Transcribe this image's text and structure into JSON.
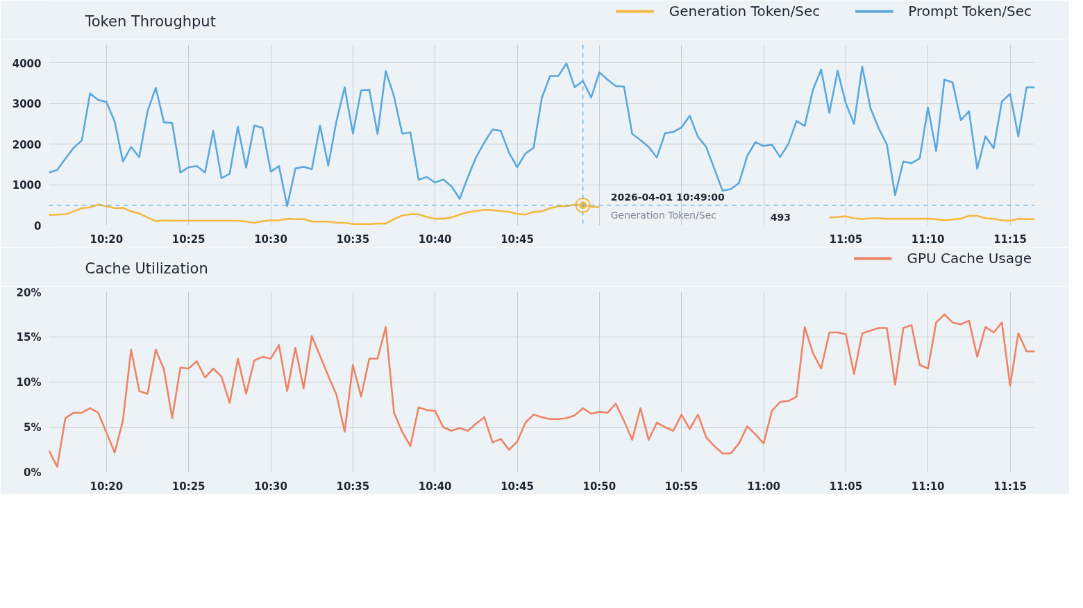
{
  "chart_data": [
    {
      "type": "line",
      "title": "Token Throughput",
      "legend": "top right",
      "grid": true,
      "x": [
        "2026-04-01T10:16:30",
        "2026-04-01T10:17:00",
        "2026-04-01T10:17:30",
        "2026-04-01T10:18:00",
        "2026-04-01T10:18:30",
        "2026-04-01T10:19:00",
        "2026-04-01T10:19:30",
        "2026-04-01T10:20:00",
        "2026-04-01T10:20:30",
        "2026-04-01T10:21:00",
        "2026-04-01T10:21:30",
        "2026-04-01T10:22:00",
        "2026-04-01T10:22:30",
        "2026-04-01T10:23:00",
        "2026-04-01T10:23:30",
        "2026-04-01T10:24:00",
        "2026-04-01T10:24:30",
        "2026-04-01T10:25:00",
        "2026-04-01T10:25:30",
        "2026-04-01T10:26:00",
        "2026-04-01T10:26:30",
        "2026-04-01T10:27:00",
        "2026-04-01T10:27:30",
        "2026-04-01T10:28:00",
        "2026-04-01T10:28:30",
        "2026-04-01T10:29:00",
        "2026-04-01T10:29:30",
        "2026-04-01T10:30:00",
        "2026-04-01T10:30:30",
        "2026-04-01T10:31:00",
        "2026-04-01T10:31:30",
        "2026-04-01T10:32:00",
        "2026-04-01T10:32:30",
        "2026-04-01T10:33:00",
        "2026-04-01T10:33:30",
        "2026-04-01T10:34:00",
        "2026-04-01T10:34:30",
        "2026-04-01T10:35:00",
        "2026-04-01T10:35:30",
        "2026-04-01T10:36:00",
        "2026-04-01T10:36:30",
        "2026-04-01T10:37:00",
        "2026-04-01T10:37:30",
        "2026-04-01T10:38:00",
        "2026-04-01T10:38:30",
        "2026-04-01T10:39:00",
        "2026-04-01T10:39:30",
        "2026-04-01T10:40:00",
        "2026-04-01T10:40:30",
        "2026-04-01T10:41:00",
        "2026-04-01T10:41:30",
        "2026-04-01T10:42:00",
        "2026-04-01T10:42:30",
        "2026-04-01T10:43:00",
        "2026-04-01T10:43:30",
        "2026-04-01T10:44:00",
        "2026-04-01T10:44:30",
        "2026-04-01T10:45:00",
        "2026-04-01T10:45:30",
        "2026-04-01T10:46:00",
        "2026-04-01T10:46:30",
        "2026-04-01T10:47:00",
        "2026-04-01T10:47:30",
        "2026-04-01T10:48:00",
        "2026-04-01T10:48:30",
        "2026-04-01T10:49:00",
        "2026-04-01T10:49:30",
        "2026-04-01T10:50:00",
        "2026-04-01T10:50:30",
        "2026-04-01T10:51:00",
        "2026-04-01T10:51:30",
        "2026-04-01T10:52:00",
        "2026-04-01T10:52:30",
        "2026-04-01T10:53:00",
        "2026-04-01T10:53:30",
        "2026-04-01T10:54:00",
        "2026-04-01T10:54:30",
        "2026-04-01T10:55:00",
        "2026-04-01T10:55:30",
        "2026-04-01T10:56:00",
        "2026-04-01T10:56:30",
        "2026-04-01T10:57:00",
        "2026-04-01T10:57:30",
        "2026-04-01T10:58:00",
        "2026-04-01T10:58:30",
        "2026-04-01T10:59:00",
        "2026-04-01T10:59:30",
        "2026-04-01T11:00:00",
        "2026-04-01T11:00:30",
        "2026-04-01T11:01:00",
        "2026-04-01T11:01:30",
        "2026-04-01T11:02:00",
        "2026-04-01T11:02:30",
        "2026-04-01T11:03:00",
        "2026-04-01T11:03:30",
        "2026-04-01T11:04:00",
        "2026-04-01T11:04:30",
        "2026-04-01T11:05:00",
        "2026-04-01T11:05:30",
        "2026-04-01T11:06:00",
        "2026-04-01T11:06:30",
        "2026-04-01T11:07:00",
        "2026-04-01T11:07:30",
        "2026-04-01T11:08:00",
        "2026-04-01T11:08:30",
        "2026-04-01T11:09:00",
        "2026-04-01T11:09:30",
        "2026-04-01T11:10:00",
        "2026-04-01T11:10:30",
        "2026-04-01T11:11:00",
        "2026-04-01T11:11:30",
        "2026-04-01T11:12:00",
        "2026-04-01T11:12:30",
        "2026-04-01T11:13:00",
        "2026-04-01T11:13:30",
        "2026-04-01T11:14:00",
        "2026-04-01T11:14:30",
        "2026-04-01T11:15:00",
        "2026-04-01T11:15:30",
        "2026-04-01T11:16:00",
        "2026-04-01T11:16:30"
      ],
      "xlim": [
        "2026-04-01T10:16:30",
        "2026-04-01T11:16:30"
      ],
      "xticks": [
        {
          "value": "2026-04-01T10:20",
          "label": "10:20"
        },
        {
          "value": "2026-04-01T10:25",
          "label": "10:25"
        },
        {
          "value": "2026-04-01T10:30",
          "label": "10:30"
        },
        {
          "value": "2026-04-01T10:35",
          "label": "10:35"
        },
        {
          "value": "2026-04-01T10:40",
          "label": "10:40"
        },
        {
          "value": "2026-04-01T10:45",
          "label": "10:45"
        },
        {
          "value": "2026-04-01T10:50",
          "label": null
        },
        {
          "value": "2026-04-01T10:55",
          "label": null
        },
        {
          "value": "2026-04-01T11:00",
          "label": null
        },
        {
          "value": "2026-04-01T11:05",
          "label": "11:05"
        },
        {
          "value": "2026-04-01T11:10",
          "label": "11:10"
        },
        {
          "value": "2026-04-01T11:15",
          "label": "11:15"
        }
      ],
      "ylim": [
        0,
        4450
      ],
      "yticks": [
        0,
        1000,
        2000,
        3000,
        4000
      ],
      "series": [
        {
          "name": "Generation Token/Sec",
          "color": "#f5b942",
          "values": [
            250,
            260,
            270,
            340,
            420,
            440,
            510,
            470,
            420,
            430,
            340,
            290,
            190,
            100,
            120,
            110,
            110,
            110,
            110,
            110,
            110,
            110,
            110,
            110,
            90,
            60,
            100,
            120,
            120,
            160,
            150,
            150,
            90,
            90,
            90,
            60,
            60,
            30,
            30,
            30,
            40,
            40,
            150,
            240,
            270,
            270,
            200,
            160,
            160,
            190,
            260,
            320,
            350,
            380,
            370,
            350,
            330,
            280,
            260,
            330,
            340,
            420,
            470,
            470,
            510,
            493,
            460,
            440,
            null,
            null,
            null,
            null,
            null,
            null,
            null,
            null,
            null,
            null,
            null,
            null,
            null,
            null,
            null,
            null,
            null,
            null,
            null,
            null,
            null,
            null,
            null,
            null,
            null,
            null,
            null,
            190,
            200,
            220,
            170,
            150,
            170,
            170,
            160,
            160,
            160,
            160,
            160,
            160,
            150,
            120,
            140,
            160,
            230,
            230,
            170,
            160,
            120,
            110,
            160,
            150,
            150
          ]
        },
        {
          "name": "Prompt Token/Sec",
          "color": "#5ba8de",
          "values": [
            1300,
            1360,
            1640,
            1910,
            2090,
            3250,
            3090,
            3040,
            2560,
            1570,
            1930,
            1680,
            2810,
            3390,
            2540,
            2520,
            1300,
            1430,
            1460,
            1300,
            2330,
            1160,
            1270,
            2430,
            1420,
            2460,
            2400,
            1320,
            1460,
            470,
            1400,
            1440,
            1380,
            2460,
            1470,
            2570,
            3400,
            2260,
            3330,
            3340,
            2250,
            3800,
            3180,
            2260,
            2290,
            1120,
            1190,
            1050,
            1130,
            960,
            650,
            1190,
            1680,
            2040,
            2360,
            2330,
            1790,
            1430,
            1770,
            1910,
            3140,
            3680,
            3680,
            3990,
            3400,
            3560,
            3150,
            3770,
            3590,
            3430,
            3420,
            2250,
            2100,
            1930,
            1670,
            2270,
            2300,
            2410,
            2700,
            2180,
            1930,
            1390,
            850,
            890,
            1040,
            1710,
            2050,
            1950,
            1990,
            1680,
            2000,
            2570,
            2450,
            3340,
            3840,
            2770,
            3810,
            3010,
            2500,
            3910,
            2890,
            2390,
            1990,
            740,
            1570,
            1530,
            1650,
            2900,
            1830,
            3590,
            3520,
            2590,
            2810,
            1390,
            2190,
            1900,
            3050,
            3240,
            2190,
            3400,
            3400
          ]
        }
      ],
      "ref_lines": [
        {
          "axis": "x",
          "value": "2026-04-01T10:49:00",
          "color": "#5ba8de",
          "line_style": "dashed"
        },
        {
          "axis": "y",
          "value": 493,
          "color": "#5ba8de",
          "line_style": "dashed"
        }
      ],
      "annotations": [
        {
          "text": "2026-04-01 10:49:00",
          "x": "2026-04-01T10:49:00",
          "y": 493
        },
        "Generation Token/Sec",
        "493"
      ]
    },
    {
      "type": "line",
      "title": "Cache Utilization",
      "legend": "top right",
      "grid": true,
      "x": [
        "2026-04-01T10:16:30",
        "2026-04-01T10:17:00",
        "2026-04-01T10:17:30",
        "2026-04-01T10:18:00",
        "2026-04-01T10:18:30",
        "2026-04-01T10:19:00",
        "2026-04-01T10:19:30",
        "2026-04-01T10:20:00",
        "2026-04-01T10:20:30",
        "2026-04-01T10:21:00",
        "2026-04-01T10:21:30",
        "2026-04-01T10:22:00",
        "2026-04-01T10:22:30",
        "2026-04-01T10:23:00",
        "2026-04-01T10:23:30",
        "2026-04-01T10:24:00",
        "2026-04-01T10:24:30",
        "2026-04-01T10:25:00",
        "2026-04-01T10:25:30",
        "2026-04-01T10:26:00",
        "2026-04-01T10:26:30",
        "2026-04-01T10:27:00",
        "2026-04-01T10:27:30",
        "2026-04-01T10:28:00",
        "2026-04-01T10:28:30",
        "2026-04-01T10:29:00",
        "2026-04-01T10:29:30",
        "2026-04-01T10:30:00",
        "2026-04-01T10:30:30",
        "2026-04-01T10:31:00",
        "2026-04-01T10:31:30",
        "2026-04-01T10:32:00",
        "2026-04-01T10:32:30",
        "2026-04-01T10:33:00",
        "2026-04-01T10:33:30",
        "2026-04-01T10:34:00",
        "2026-04-01T10:34:30",
        "2026-04-01T10:35:00",
        "2026-04-01T10:35:30",
        "2026-04-01T10:36:00",
        "2026-04-01T10:36:30",
        "2026-04-01T10:37:00",
        "2026-04-01T10:37:30",
        "2026-04-01T10:38:00",
        "2026-04-01T10:38:30",
        "2026-04-01T10:39:00",
        "2026-04-01T10:39:30",
        "2026-04-01T10:40:00",
        "2026-04-01T10:40:30",
        "2026-04-01T10:41:00",
        "2026-04-01T10:41:30",
        "2026-04-01T10:42:00",
        "2026-04-01T10:42:30",
        "2026-04-01T10:43:00",
        "2026-04-01T10:43:30",
        "2026-04-01T10:44:00",
        "2026-04-01T10:44:30",
        "2026-04-01T10:45:00",
        "2026-04-01T10:45:30",
        "2026-04-01T10:46:00",
        "2026-04-01T10:46:30",
        "2026-04-01T10:47:00",
        "2026-04-01T10:47:30",
        "2026-04-01T10:48:00",
        "2026-04-01T10:48:30",
        "2026-04-01T10:49:00",
        "2026-04-01T10:49:30",
        "2026-04-01T10:50:00",
        "2026-04-01T10:50:30",
        "2026-04-01T10:51:00",
        "2026-04-01T10:51:30",
        "2026-04-01T10:52:00",
        "2026-04-01T10:52:30",
        "2026-04-01T10:53:00",
        "2026-04-01T10:53:30",
        "2026-04-01T10:54:00",
        "2026-04-01T10:54:30",
        "2026-04-01T10:55:00",
        "2026-04-01T10:55:30",
        "2026-04-01T10:56:00",
        "2026-04-01T10:56:30",
        "2026-04-01T10:57:00",
        "2026-04-01T10:57:30",
        "2026-04-01T10:58:00",
        "2026-04-01T10:58:30",
        "2026-04-01T10:59:00",
        "2026-04-01T10:59:30",
        "2026-04-01T11:00:00",
        "2026-04-01T11:00:30",
        "2026-04-01T11:01:00",
        "2026-04-01T11:01:30",
        "2026-04-01T11:02:00",
        "2026-04-01T11:02:30",
        "2026-04-01T11:03:00",
        "2026-04-01T11:03:30",
        "2026-04-01T11:04:00",
        "2026-04-01T11:04:30",
        "2026-04-01T11:05:00",
        "2026-04-01T11:05:30",
        "2026-04-01T11:06:00",
        "2026-04-01T11:06:30",
        "2026-04-01T11:07:00",
        "2026-04-01T11:07:30",
        "2026-04-01T11:08:00",
        "2026-04-01T11:08:30",
        "2026-04-01T11:09:00",
        "2026-04-01T11:09:30",
        "2026-04-01T11:10:00",
        "2026-04-01T11:10:30",
        "2026-04-01T11:11:00",
        "2026-04-01T11:11:30",
        "2026-04-01T11:12:00",
        "2026-04-01T11:12:30",
        "2026-04-01T11:13:00",
        "2026-04-01T11:13:30",
        "2026-04-01T11:14:00",
        "2026-04-01T11:14:30",
        "2026-04-01T11:15:00",
        "2026-04-01T11:15:30",
        "2026-04-01T11:16:00",
        "2026-04-01T11:16:30"
      ],
      "xlim": [
        "2026-04-01T10:16:30",
        "2026-04-01T11:16:30"
      ],
      "xticks": [
        {
          "value": "2026-04-01T10:20",
          "label": "10:20"
        },
        {
          "value": "2026-04-01T10:25",
          "label": "10:25"
        },
        {
          "value": "2026-04-01T10:30",
          "label": "10:30"
        },
        {
          "value": "2026-04-01T10:35",
          "label": "10:35"
        },
        {
          "value": "2026-04-01T10:40",
          "label": "10:40"
        },
        {
          "value": "2026-04-01T10:45",
          "label": "10:45"
        },
        {
          "value": "2026-04-01T10:50",
          "label": "10:50"
        },
        {
          "value": "2026-04-01T10:55",
          "label": "10:55"
        },
        {
          "value": "2026-04-01T11:00",
          "label": "11:00"
        },
        {
          "value": "2026-04-01T11:05",
          "label": "11:05"
        },
        {
          "value": "2026-04-01T11:10",
          "label": "11:10"
        },
        {
          "value": "2026-04-01T11:15",
          "label": "11:15"
        }
      ],
      "ylim": [
        0,
        20
      ],
      "yticks": [
        {
          "value": 0,
          "label": "0%"
        },
        {
          "value": 5,
          "label": "5%"
        },
        {
          "value": 10,
          "label": "10%"
        },
        {
          "value": 15,
          "label": "15%"
        },
        {
          "value": 20,
          "label": "20%"
        }
      ],
      "series": [
        {
          "name": "GPU Cache Usage",
          "color": "#ee8466",
          "values": [
            2.4,
            0.6,
            6.0,
            6.6,
            6.6,
            7.1,
            6.6,
            4.4,
            2.2,
            5.7,
            13.6,
            9.0,
            8.7,
            13.6,
            11.4,
            6.0,
            11.6,
            11.5,
            12.3,
            10.5,
            11.5,
            10.6,
            7.7,
            12.6,
            8.7,
            12.4,
            12.8,
            12.6,
            14.1,
            9.0,
            13.8,
            9.3,
            15.1,
            12.9,
            10.7,
            8.6,
            4.5,
            11.9,
            8.4,
            12.6,
            12.6,
            16.1,
            6.6,
            4.5,
            2.9,
            7.2,
            6.9,
            6.8,
            5.0,
            4.6,
            4.9,
            4.6,
            5.4,
            6.1,
            3.3,
            3.7,
            2.5,
            3.4,
            5.5,
            6.4,
            6.1,
            5.9,
            5.9,
            6.0,
            6.3,
            7.1,
            6.5,
            6.7,
            6.6,
            7.6,
            5.7,
            3.6,
            7.1,
            3.6,
            5.5,
            5.0,
            4.6,
            6.4,
            4.8,
            6.4,
            3.9,
            2.9,
            2.1,
            2.1,
            3.2,
            5.1,
            4.2,
            3.2,
            6.8,
            7.8,
            7.9,
            8.4,
            16.1,
            13.2,
            11.5,
            15.5,
            15.5,
            15.3,
            10.9,
            15.4,
            15.7,
            16.0,
            16.0,
            9.7,
            16.0,
            16.3,
            11.9,
            11.5,
            16.6,
            17.5,
            16.6,
            16.4,
            16.8,
            12.8,
            16.1,
            15.5,
            16.6,
            9.6,
            15.4,
            13.4,
            13.4
          ]
        }
      ]
    }
  ]
}
